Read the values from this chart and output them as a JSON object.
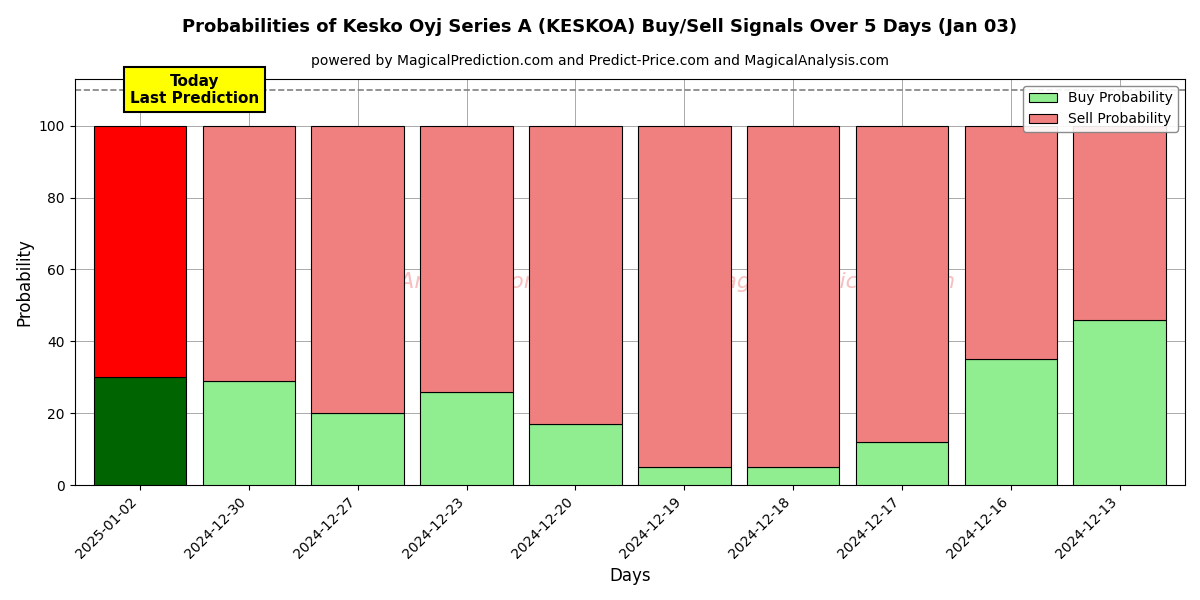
{
  "title": "Probabilities of Kesko Oyj Series A (KESKOA) Buy/Sell Signals Over 5 Days (Jan 03)",
  "subtitle": "powered by MagicalPrediction.com and Predict-Price.com and MagicalAnalysis.com",
  "xlabel": "Days",
  "ylabel": "Probability",
  "dates": [
    "2025-01-02",
    "2024-12-30",
    "2024-12-27",
    "2024-12-23",
    "2024-12-20",
    "2024-12-19",
    "2024-12-18",
    "2024-12-17",
    "2024-12-16",
    "2024-12-13"
  ],
  "buy_values": [
    30,
    29,
    20,
    26,
    17,
    5,
    5,
    12,
    35,
    46
  ],
  "sell_values": [
    70,
    71,
    80,
    74,
    83,
    95,
    95,
    88,
    65,
    54
  ],
  "today_buy_color": "#006400",
  "today_sell_color": "#ff0000",
  "buy_color": "#90ee90",
  "sell_color": "#f08080",
  "today_index": 0,
  "ylim": [
    0,
    113
  ],
  "dashed_line_y": 110,
  "today_label": "Today\nLast Prediction",
  "legend_buy_label": "Buy Probability",
  "legend_sell_label": "Sell Probability",
  "bg_color": "#ffffff",
  "grid_color": "#aaaaaa",
  "bar_edge_color": "#000000",
  "bar_width": 0.85
}
